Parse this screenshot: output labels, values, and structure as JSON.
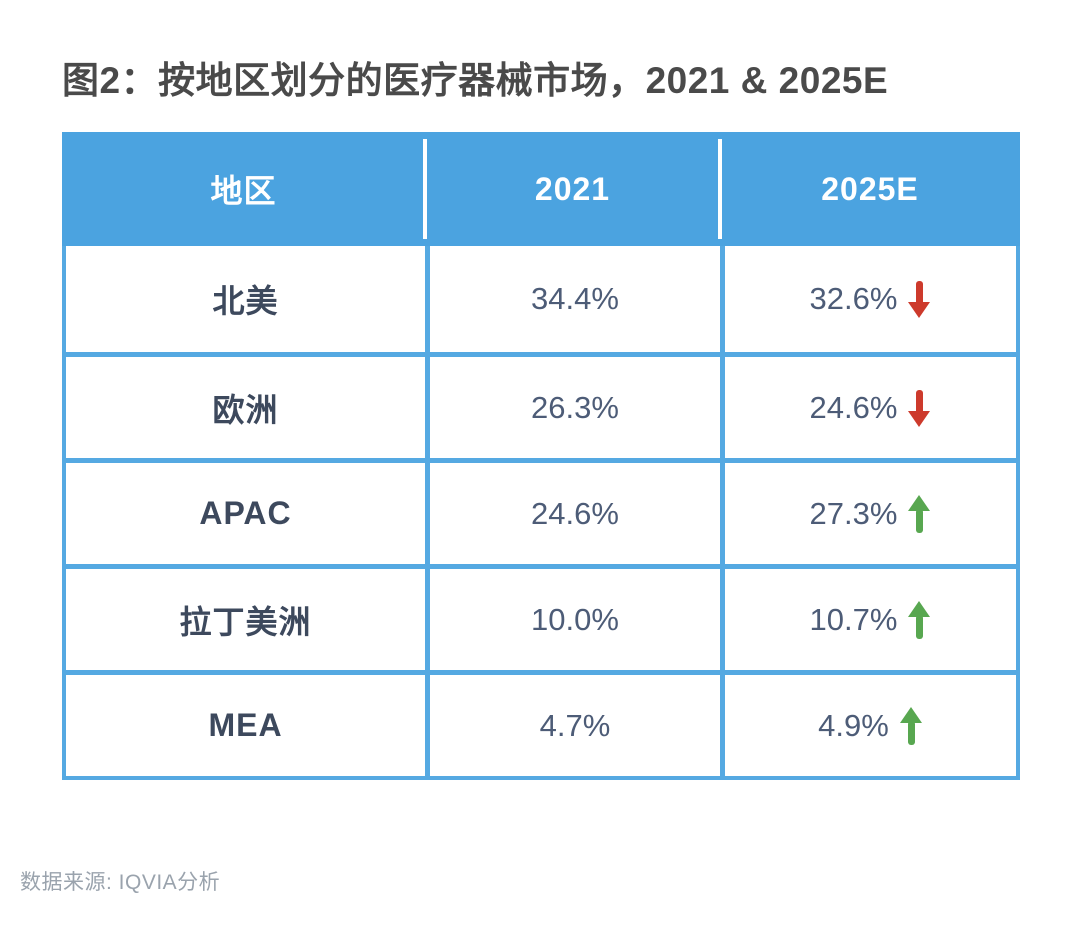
{
  "page": {
    "title": "图2：按地区划分的医疗器械市场，2021 & 2025E",
    "source": "数据来源: IQVIA分析"
  },
  "colors": {
    "header_bg": "#4ba3e0",
    "table_border": "#55a9e2",
    "trend_up": "#58a750",
    "trend_down": "#cd3a2c",
    "title_text": "#4a4a4a",
    "value_text": "#4d5c77"
  },
  "table": {
    "columns": [
      "地区",
      "2021",
      "2025E"
    ],
    "rows": [
      {
        "region": "北美",
        "y2021": "34.4%",
        "y2025": "32.6%",
        "trend": "down",
        "arrow_class": "arrow down"
      },
      {
        "region": "欧洲",
        "y2021": "26.3%",
        "y2025": "24.6%",
        "trend": "down",
        "arrow_class": "arrow down"
      },
      {
        "region": "APAC",
        "y2021": "24.6%",
        "y2025": "27.3%",
        "trend": "up",
        "arrow_class": "arrow up"
      },
      {
        "region": "拉丁美洲",
        "y2021": "10.0%",
        "y2025": "10.7%",
        "trend": "up",
        "arrow_class": "arrow up"
      },
      {
        "region": "MEA",
        "y2021": "4.7%",
        "y2025": "4.9%",
        "trend": "up",
        "arrow_class": "arrow up"
      }
    ]
  },
  "chart_data": {
    "type": "table",
    "title": "图2：按地区划分的医疗器械市场，2021 & 2025E",
    "columns": [
      "地区",
      "2021",
      "2025E"
    ],
    "categories": [
      "北美",
      "欧洲",
      "APAC",
      "拉丁美洲",
      "MEA"
    ],
    "series": [
      {
        "name": "2021",
        "values": [
          34.4,
          26.3,
          24.6,
          10.0,
          4.7
        ]
      },
      {
        "name": "2025E",
        "values": [
          32.6,
          24.6,
          27.3,
          10.7,
          4.9
        ]
      }
    ],
    "trends_2025_vs_2021": [
      "down",
      "down",
      "up",
      "up",
      "up"
    ],
    "unit": "%",
    "source": "数据来源: IQVIA分析"
  }
}
